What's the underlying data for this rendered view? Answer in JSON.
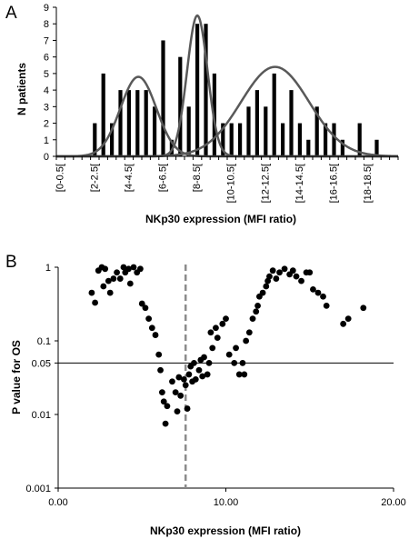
{
  "chart_data": [
    {
      "panel_label": "A",
      "type": "bar",
      "xlabel": "NKp30 expression (MFI ratio)",
      "ylabel": "N patients",
      "ylim": [
        0,
        9
      ],
      "yticks": [
        "0",
        "1",
        "2",
        "3",
        "4",
        "5",
        "6",
        "7",
        "8",
        "9"
      ],
      "xtick_labels": [
        "[0-0.5[",
        "[2-2.5[",
        "[4-4.5[",
        "[6-6.5[",
        "[8-8.5[",
        "[10-10.5[",
        "[12-12.5[",
        "[14-14.5[",
        "[16-16.5[",
        "[18-18.5["
      ],
      "bin_width": 0.5,
      "bins": [
        {
          "x": 2.0,
          "y": 2
        },
        {
          "x": 2.5,
          "y": 5
        },
        {
          "x": 3.0,
          "y": 2
        },
        {
          "x": 3.5,
          "y": 4
        },
        {
          "x": 4.0,
          "y": 4
        },
        {
          "x": 4.5,
          "y": 4
        },
        {
          "x": 5.0,
          "y": 4
        },
        {
          "x": 5.5,
          "y": 3
        },
        {
          "x": 6.0,
          "y": 7
        },
        {
          "x": 6.5,
          "y": 1
        },
        {
          "x": 7.0,
          "y": 6
        },
        {
          "x": 7.5,
          "y": 3
        },
        {
          "x": 8.0,
          "y": 8
        },
        {
          "x": 8.5,
          "y": 8
        },
        {
          "x": 9.0,
          "y": 5
        },
        {
          "x": 9.5,
          "y": 2
        },
        {
          "x": 10.0,
          "y": 2
        },
        {
          "x": 10.5,
          "y": 2
        },
        {
          "x": 11.0,
          "y": 3
        },
        {
          "x": 11.5,
          "y": 4
        },
        {
          "x": 12.0,
          "y": 3
        },
        {
          "x": 12.5,
          "y": 5
        },
        {
          "x": 13.0,
          "y": 2
        },
        {
          "x": 13.5,
          "y": 4
        },
        {
          "x": 14.0,
          "y": 2
        },
        {
          "x": 14.5,
          "y": 1
        },
        {
          "x": 15.0,
          "y": 3
        },
        {
          "x": 15.5,
          "y": 2
        },
        {
          "x": 16.0,
          "y": 2
        },
        {
          "x": 16.5,
          "y": 1
        },
        {
          "x": 17.5,
          "y": 2
        },
        {
          "x": 18.5,
          "y": 1
        }
      ],
      "fitted_curves": [
        {
          "mean": 4.8,
          "sd": 1.05,
          "peak": 4.8
        },
        {
          "mean": 8.25,
          "sd": 0.6,
          "peak": 8.5
        },
        {
          "mean": 12.8,
          "sd": 2.0,
          "peak": 5.4
        }
      ],
      "grid": false
    },
    {
      "panel_label": "B",
      "type": "scatter",
      "xlabel": "NKp30 expression (MFI ratio)",
      "ylabel": "P value for OS",
      "xlim": [
        0,
        20
      ],
      "xticks": [
        "0.00",
        "10.00",
        "20.00"
      ],
      "ylim": [
        0.001,
        1
      ],
      "yscale": "log",
      "yticks": [
        "0.001",
        "0.01",
        "0.05",
        "0.1",
        "1"
      ],
      "reference_line_y": 0.05,
      "cutoff_x": 7.6,
      "grid": false,
      "points": [
        {
          "x": 2.0,
          "y": 0.45
        },
        {
          "x": 2.2,
          "y": 0.33
        },
        {
          "x": 2.4,
          "y": 0.9
        },
        {
          "x": 2.6,
          "y": 1.0
        },
        {
          "x": 2.7,
          "y": 0.55
        },
        {
          "x": 2.8,
          "y": 0.95
        },
        {
          "x": 3.0,
          "y": 0.65
        },
        {
          "x": 3.1,
          "y": 0.45
        },
        {
          "x": 3.3,
          "y": 0.7
        },
        {
          "x": 3.5,
          "y": 0.85
        },
        {
          "x": 3.7,
          "y": 0.7
        },
        {
          "x": 3.9,
          "y": 1.0
        },
        {
          "x": 4.0,
          "y": 0.85
        },
        {
          "x": 4.2,
          "y": 0.95
        },
        {
          "x": 4.3,
          "y": 0.6
        },
        {
          "x": 4.5,
          "y": 1.0
        },
        {
          "x": 4.7,
          "y": 0.85
        },
        {
          "x": 4.9,
          "y": 0.95
        },
        {
          "x": 5.0,
          "y": 0.32
        },
        {
          "x": 5.2,
          "y": 0.28
        },
        {
          "x": 5.4,
          "y": 0.2
        },
        {
          "x": 5.6,
          "y": 0.15
        },
        {
          "x": 5.8,
          "y": 0.12
        },
        {
          "x": 6.0,
          "y": 0.065
        },
        {
          "x": 6.1,
          "y": 0.04
        },
        {
          "x": 6.2,
          "y": 0.02
        },
        {
          "x": 6.3,
          "y": 0.015
        },
        {
          "x": 6.4,
          "y": 0.0075
        },
        {
          "x": 6.5,
          "y": 0.013
        },
        {
          "x": 6.8,
          "y": 0.028
        },
        {
          "x": 7.0,
          "y": 0.02
        },
        {
          "x": 7.1,
          "y": 0.011
        },
        {
          "x": 7.2,
          "y": 0.032
        },
        {
          "x": 7.3,
          "y": 0.018
        },
        {
          "x": 7.5,
          "y": 0.03
        },
        {
          "x": 7.6,
          "y": 0.025
        },
        {
          "x": 7.7,
          "y": 0.012
        },
        {
          "x": 7.8,
          "y": 0.035
        },
        {
          "x": 7.9,
          "y": 0.045
        },
        {
          "x": 8.0,
          "y": 0.028
        },
        {
          "x": 8.1,
          "y": 0.05
        },
        {
          "x": 8.2,
          "y": 0.03
        },
        {
          "x": 8.4,
          "y": 0.04
        },
        {
          "x": 8.5,
          "y": 0.055
        },
        {
          "x": 8.6,
          "y": 0.033
        },
        {
          "x": 8.7,
          "y": 0.06
        },
        {
          "x": 8.9,
          "y": 0.035
        },
        {
          "x": 9.0,
          "y": 0.05
        },
        {
          "x": 9.1,
          "y": 0.13
        },
        {
          "x": 9.2,
          "y": 0.08
        },
        {
          "x": 9.4,
          "y": 0.15
        },
        {
          "x": 9.5,
          "y": 0.11
        },
        {
          "x": 9.8,
          "y": 0.17
        },
        {
          "x": 10.0,
          "y": 0.2
        },
        {
          "x": 10.2,
          "y": 0.065
        },
        {
          "x": 10.5,
          "y": 0.05
        },
        {
          "x": 10.6,
          "y": 0.08
        },
        {
          "x": 10.8,
          "y": 0.035
        },
        {
          "x": 11.0,
          "y": 0.05
        },
        {
          "x": 11.1,
          "y": 0.035
        },
        {
          "x": 11.2,
          "y": 0.1
        },
        {
          "x": 11.4,
          "y": 0.13
        },
        {
          "x": 11.6,
          "y": 0.2
        },
        {
          "x": 11.8,
          "y": 0.25
        },
        {
          "x": 11.9,
          "y": 0.3
        },
        {
          "x": 12.0,
          "y": 0.4
        },
        {
          "x": 12.2,
          "y": 0.45
        },
        {
          "x": 12.4,
          "y": 0.55
        },
        {
          "x": 12.5,
          "y": 0.65
        },
        {
          "x": 12.6,
          "y": 0.75
        },
        {
          "x": 12.8,
          "y": 0.9
        },
        {
          "x": 13.0,
          "y": 0.7
        },
        {
          "x": 13.2,
          "y": 0.85
        },
        {
          "x": 13.5,
          "y": 0.95
        },
        {
          "x": 13.8,
          "y": 0.8
        },
        {
          "x": 14.0,
          "y": 0.9
        },
        {
          "x": 14.2,
          "y": 0.75
        },
        {
          "x": 14.5,
          "y": 0.65
        },
        {
          "x": 14.8,
          "y": 0.85
        },
        {
          "x": 15.0,
          "y": 0.85
        },
        {
          "x": 15.2,
          "y": 0.5
        },
        {
          "x": 15.5,
          "y": 0.45
        },
        {
          "x": 15.8,
          "y": 0.4
        },
        {
          "x": 16.0,
          "y": 0.3
        },
        {
          "x": 17.0,
          "y": 0.17
        },
        {
          "x": 17.3,
          "y": 0.2
        },
        {
          "x": 18.2,
          "y": 0.28
        }
      ]
    }
  ]
}
